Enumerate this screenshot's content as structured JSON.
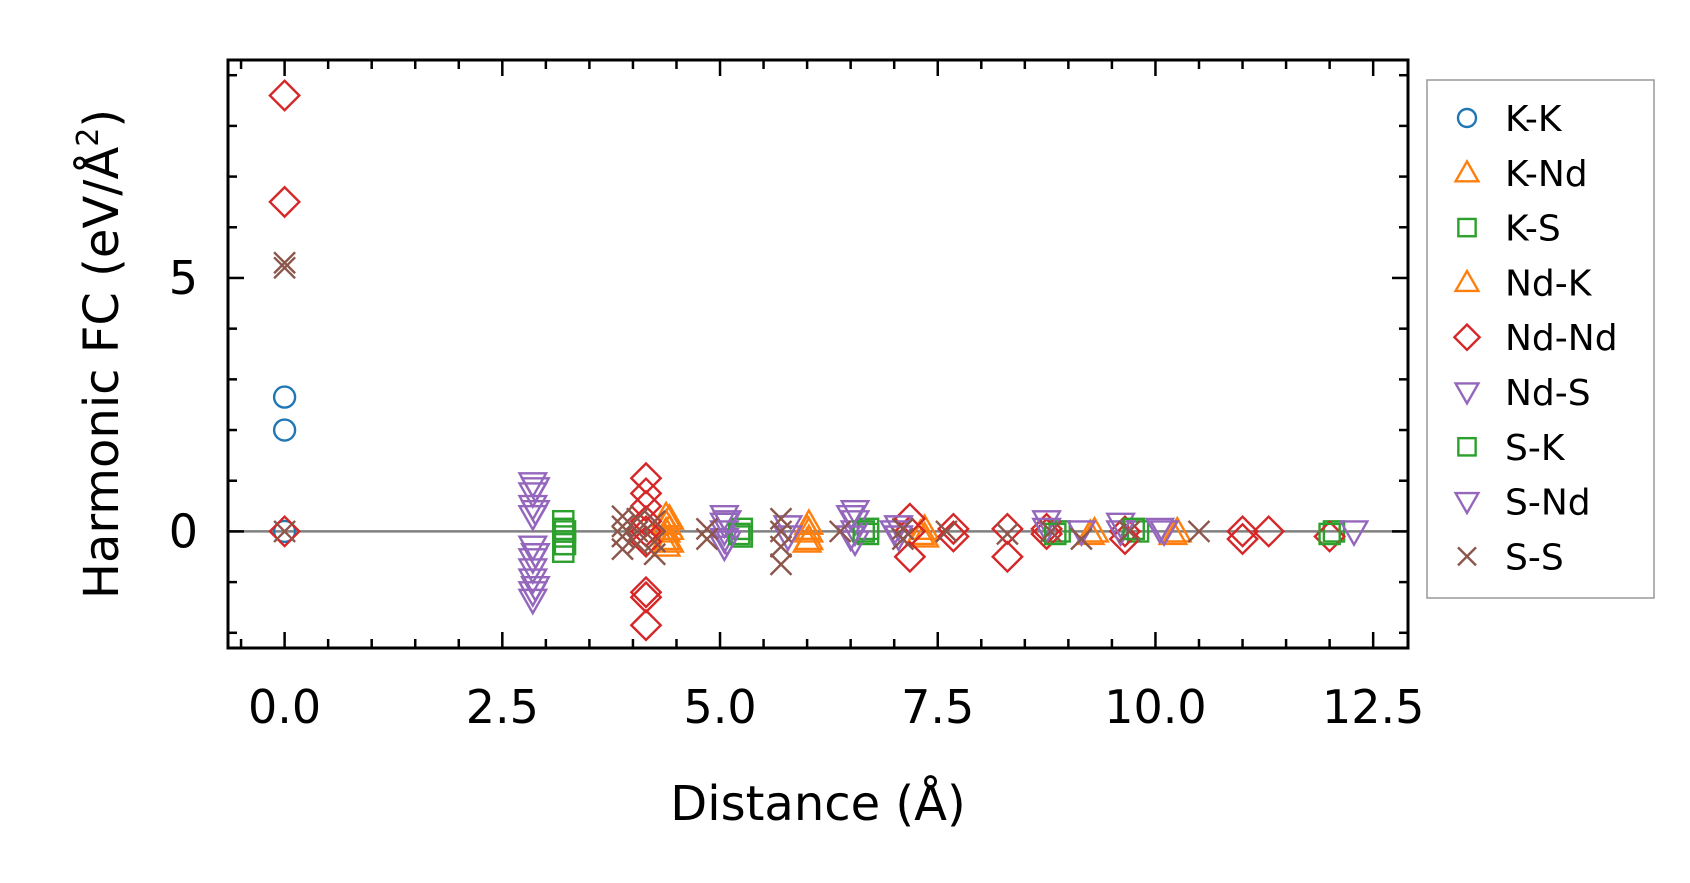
{
  "chart_data": {
    "type": "scatter",
    "xlabel": "Distance (Å)",
    "ylabel": "Harmonic FC (eV/Å",
    "ylabel_sup": "2",
    "ylabel_close": ")",
    "xlim": [
      -0.65,
      12.9
    ],
    "ylim": [
      -2.3,
      9.3
    ],
    "xticks": [
      0.0,
      2.5,
      5.0,
      7.5,
      10.0,
      12.5
    ],
    "xtick_labels": [
      "0.0",
      "2.5",
      "5.0",
      "7.5",
      "10.0",
      "12.5"
    ],
    "yticks": [
      0,
      5
    ],
    "ytick_labels": [
      "0",
      "5"
    ],
    "x_minor_step": 0.5,
    "y_minor_step": 1,
    "zero_line": true,
    "legend_position": "right",
    "series": [
      {
        "name": "K-K",
        "marker": "circle",
        "color": "#1f77b4",
        "points": [
          [
            0,
            2.65
          ],
          [
            0,
            2.0
          ],
          [
            0,
            0
          ]
        ]
      },
      {
        "name": "K-Nd",
        "marker": "triangle-up",
        "color": "#ff7f0e",
        "points": [
          [
            4.38,
            0.3
          ],
          [
            4.38,
            0.15
          ],
          [
            4.38,
            0.0
          ],
          [
            4.38,
            -0.15
          ],
          [
            4.38,
            -0.28
          ],
          [
            6.02,
            0.15
          ],
          [
            6.02,
            0.0
          ],
          [
            6.02,
            -0.15
          ],
          [
            7.35,
            0.05
          ],
          [
            7.35,
            -0.1
          ],
          [
            9.3,
            0.0
          ],
          [
            10.25,
            0.0
          ]
        ]
      },
      {
        "name": "K-S",
        "marker": "square",
        "color": "#2ca02c",
        "points": [
          [
            3.2,
            0.2
          ],
          [
            3.2,
            0.05
          ],
          [
            3.2,
            -0.1
          ],
          [
            3.2,
            -0.25
          ],
          [
            3.2,
            -0.4
          ],
          [
            5.25,
            0.05
          ],
          [
            5.25,
            -0.1
          ],
          [
            6.7,
            0.05
          ],
          [
            6.7,
            -0.05
          ],
          [
            8.9,
            0.0
          ],
          [
            9.8,
            0.0
          ],
          [
            12.05,
            0.0
          ]
        ]
      },
      {
        "name": "Nd-K",
        "marker": "triangle-up",
        "color": "#ff7f0e",
        "points": [
          [
            4.42,
            0.25
          ],
          [
            4.42,
            0.05
          ],
          [
            4.42,
            -0.2
          ],
          [
            6.0,
            0.05
          ],
          [
            6.0,
            -0.2
          ],
          [
            7.3,
            -0.05
          ],
          [
            9.25,
            -0.05
          ],
          [
            10.2,
            -0.05
          ]
        ]
      },
      {
        "name": "Nd-Nd",
        "marker": "diamond",
        "color": "#d62728",
        "points": [
          [
            0,
            8.6
          ],
          [
            0,
            6.5
          ],
          [
            0,
            0
          ],
          [
            4.15,
            1.05
          ],
          [
            4.15,
            0.75
          ],
          [
            4.15,
            0.5
          ],
          [
            4.15,
            0.2
          ],
          [
            4.15,
            0.0
          ],
          [
            4.15,
            -0.2
          ],
          [
            4.15,
            -1.2
          ],
          [
            4.15,
            -1.3
          ],
          [
            4.15,
            -1.85
          ],
          [
            7.18,
            0.25
          ],
          [
            7.18,
            0.0
          ],
          [
            7.18,
            -0.5
          ],
          [
            7.68,
            0.05
          ],
          [
            7.68,
            -0.1
          ],
          [
            8.3,
            0.05
          ],
          [
            8.3,
            -0.5
          ],
          [
            8.75,
            0.05
          ],
          [
            8.75,
            -0.05
          ],
          [
            9.65,
            0.0
          ],
          [
            9.65,
            -0.15
          ],
          [
            11.0,
            0.0
          ],
          [
            11.0,
            -0.15
          ],
          [
            11.3,
            0.0
          ],
          [
            12.0,
            -0.1
          ]
        ]
      },
      {
        "name": "Nd-S",
        "marker": "triangle-down",
        "color": "#9467bd",
        "points": [
          [
            2.85,
            0.95
          ],
          [
            2.85,
            0.75
          ],
          [
            2.85,
            0.5
          ],
          [
            2.85,
            0.3
          ],
          [
            2.85,
            -0.3
          ],
          [
            2.85,
            -0.55
          ],
          [
            2.85,
            -0.75
          ],
          [
            2.85,
            -0.95
          ],
          [
            2.85,
            -1.2
          ],
          [
            2.85,
            -1.35
          ],
          [
            5.05,
            0.3
          ],
          [
            5.05,
            0.15
          ],
          [
            5.05,
            0.0
          ],
          [
            5.05,
            -0.15
          ],
          [
            5.05,
            -0.3
          ],
          [
            5.78,
            0.1
          ],
          [
            5.78,
            -0.1
          ],
          [
            6.55,
            0.4
          ],
          [
            6.55,
            0.2
          ],
          [
            6.55,
            0.0
          ],
          [
            6.55,
            -0.2
          ],
          [
            7.05,
            0.1
          ],
          [
            7.05,
            -0.1
          ],
          [
            8.75,
            0.2
          ],
          [
            8.75,
            0.05
          ],
          [
            9.6,
            0.15
          ],
          [
            9.6,
            0.0
          ],
          [
            10.05,
            0.05
          ]
        ]
      },
      {
        "name": "S-K",
        "marker": "square",
        "color": "#2ca02c",
        "points": [
          [
            3.22,
            0.0
          ],
          [
            3.22,
            -0.25
          ],
          [
            5.22,
            -0.05
          ],
          [
            6.65,
            0.0
          ],
          [
            8.85,
            -0.05
          ],
          [
            9.75,
            0.05
          ],
          [
            12.0,
            -0.05
          ]
        ]
      },
      {
        "name": "S-Nd",
        "marker": "triangle-down",
        "color": "#9467bd",
        "points": [
          [
            2.88,
            0.85
          ],
          [
            2.88,
            0.4
          ],
          [
            2.88,
            -0.45
          ],
          [
            2.88,
            -1.1
          ],
          [
            5.08,
            0.2
          ],
          [
            5.08,
            -0.2
          ],
          [
            6.5,
            0.3
          ],
          [
            6.5,
            -0.1
          ],
          [
            7.0,
            0.0
          ],
          [
            9.15,
            0.0
          ],
          [
            10.1,
            0.0
          ],
          [
            12.28,
            0.0
          ]
        ]
      },
      {
        "name": "S-S",
        "marker": "x",
        "color": "#8c564b",
        "points": [
          [
            0,
            5.3
          ],
          [
            0,
            5.2
          ],
          [
            0,
            0
          ],
          [
            3.88,
            0.3
          ],
          [
            3.88,
            0.1
          ],
          [
            3.88,
            -0.1
          ],
          [
            3.88,
            -0.35
          ],
          [
            4.05,
            0.25
          ],
          [
            4.05,
            0.0
          ],
          [
            4.05,
            -0.25
          ],
          [
            4.25,
            0.2
          ],
          [
            4.25,
            -0.2
          ],
          [
            4.25,
            -0.45
          ],
          [
            4.85,
            0.05
          ],
          [
            4.85,
            -0.15
          ],
          [
            5.7,
            0.25
          ],
          [
            5.7,
            0.0
          ],
          [
            5.7,
            -0.3
          ],
          [
            5.7,
            -0.65
          ],
          [
            6.38,
            0.0
          ],
          [
            7.1,
            0.05
          ],
          [
            7.1,
            -0.15
          ],
          [
            7.6,
            0.0
          ],
          [
            8.3,
            -0.05
          ],
          [
            8.8,
            0.0
          ],
          [
            9.15,
            -0.15
          ],
          [
            9.7,
            0.0
          ],
          [
            10.5,
            0.0
          ]
        ]
      }
    ]
  }
}
